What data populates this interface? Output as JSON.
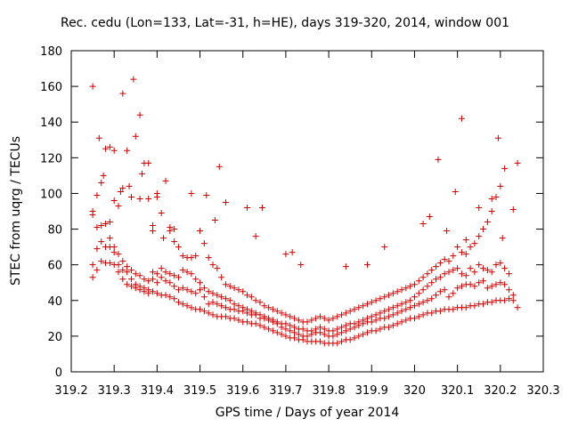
{
  "chart_data": {
    "type": "scatter",
    "title": "Rec. cedu (Lon=133, Lat=-31, h=HE), days 319-320, 2014, window 001",
    "xlabel": "GPS time / Days of year 2014",
    "ylabel": "STEC from uqrg / TECUs",
    "xlim": [
      319.2,
      320.3
    ],
    "ylim": [
      0,
      180
    ],
    "xticks": [
      "319.2",
      "319.3",
      "319.4",
      "319.5",
      "319.6",
      "319.7",
      "319.8",
      "319.9",
      "320",
      "320.1",
      "320.2",
      "320.3"
    ],
    "yticks": [
      "0",
      "20",
      "40",
      "60",
      "80",
      "100",
      "120",
      "140",
      "160",
      "180"
    ],
    "marker": "+",
    "color": "#cc0000",
    "grid": false,
    "legend": "none",
    "series": [
      {
        "x": [
          319.25,
          319.26,
          319.27,
          319.28,
          319.29,
          319.3,
          319.31,
          319.32,
          319.33,
          319.34,
          319.35,
          319.36,
          319.37,
          319.38,
          319.39,
          319.4,
          319.41,
          319.42,
          319.43,
          319.44,
          319.45,
          319.46,
          319.47,
          319.48,
          319.49,
          319.5,
          319.51,
          319.52,
          319.53,
          319.54,
          319.55,
          319.56,
          319.57,
          319.58,
          319.59,
          319.6,
          319.61,
          319.62,
          319.63,
          319.64,
          319.65,
          319.66,
          319.67,
          319.68,
          319.69,
          319.7,
          319.71,
          319.72,
          319.73,
          319.74,
          319.75,
          319.76,
          319.77,
          319.78,
          319.79,
          319.8,
          319.81,
          319.82,
          319.83,
          319.84,
          319.85,
          319.86,
          319.87,
          319.88,
          319.89,
          319.9,
          319.91,
          319.92,
          319.93,
          319.94,
          319.95,
          319.96,
          319.97,
          319.98,
          319.99,
          320.0,
          320.01,
          320.02,
          320.03,
          320.04,
          320.05,
          320.06,
          320.07,
          320.08,
          320.09,
          320.1,
          320.11,
          320.12,
          320.13,
          320.14,
          320.15,
          320.16,
          320.17,
          320.18,
          320.19,
          320.2,
          320.21,
          320.22,
          320.23,
          320.24
        ],
        "y": [
          53,
          57,
          62,
          61,
          61,
          60,
          56,
          52,
          49,
          48,
          47,
          46,
          45,
          44,
          45,
          44,
          43,
          43,
          42,
          41,
          39,
          38,
          37,
          36,
          35,
          35,
          34,
          33,
          32,
          31,
          31,
          31,
          30,
          30,
          29,
          28,
          28,
          27,
          27,
          26,
          25,
          24,
          23,
          22,
          21,
          20,
          19,
          19,
          18,
          18,
          17,
          17,
          17,
          17,
          16,
          16,
          16,
          16,
          17,
          18,
          18,
          19,
          20,
          21,
          22,
          23,
          23,
          24,
          25,
          25,
          26,
          27,
          28,
          29,
          30,
          30,
          31,
          32,
          33,
          33,
          34,
          34,
          35,
          35,
          35,
          36,
          36,
          36,
          37,
          37,
          38,
          38,
          39,
          39,
          40,
          40,
          40,
          41,
          40,
          36
        ]
      },
      {
        "x": [
          319.25,
          319.26,
          319.27,
          319.28,
          319.29,
          319.3,
          319.31,
          319.32,
          319.33,
          319.34,
          319.35,
          319.36,
          319.37,
          319.38,
          319.39,
          319.4,
          319.41,
          319.42,
          319.43,
          319.44,
          319.45,
          319.46,
          319.47,
          319.48,
          319.49,
          319.5,
          319.51,
          319.52,
          319.53,
          319.54,
          319.55,
          319.56,
          319.57,
          319.58,
          319.59,
          319.6,
          319.61,
          319.62,
          319.63,
          319.64,
          319.65,
          319.66,
          319.67,
          319.68,
          319.69,
          319.7,
          319.71,
          319.72,
          319.73,
          319.74,
          319.75,
          319.76,
          319.77,
          319.78,
          319.79,
          319.8,
          319.81,
          319.82,
          319.83,
          319.84,
          319.85,
          319.86,
          319.87,
          319.88,
          319.89,
          319.9,
          319.91,
          319.92,
          319.93,
          319.94,
          319.95,
          319.96,
          319.97,
          319.98,
          319.99,
          320.0,
          320.01,
          320.02,
          320.03,
          320.04,
          320.05,
          320.06,
          320.07,
          320.08,
          320.09,
          320.1,
          320.11,
          320.12,
          320.13,
          320.14,
          320.15,
          320.16,
          320.17,
          320.18,
          320.19,
          320.2,
          320.21,
          320.22,
          320.23
        ],
        "y": [
          60,
          69,
          73,
          70,
          70,
          67,
          60,
          57,
          56,
          52,
          49,
          48,
          47,
          46,
          52,
          50,
          53,
          51,
          50,
          48,
          46,
          47,
          46,
          45,
          44,
          46,
          42,
          38,
          39,
          38,
          37,
          36,
          35,
          35,
          34,
          34,
          33,
          32,
          32,
          30,
          30,
          29,
          28,
          27,
          25,
          24,
          23,
          22,
          21,
          20,
          20,
          21,
          22,
          22,
          21,
          20,
          20,
          21,
          22,
          23,
          24,
          25,
          26,
          27,
          28,
          28,
          29,
          30,
          30,
          31,
          32,
          33,
          34,
          35,
          36,
          37,
          38,
          39,
          40,
          41,
          43,
          45,
          46,
          42,
          44,
          47,
          48,
          49,
          49,
          48,
          50,
          51,
          47,
          48,
          49,
          50,
          49,
          46,
          43
        ]
      },
      {
        "x": [
          319.25,
          319.26,
          319.27,
          319.28,
          319.29,
          319.3,
          319.31,
          319.32,
          319.33,
          319.34,
          319.35,
          319.36,
          319.37,
          319.38,
          319.39,
          319.4,
          319.41,
          319.42,
          319.43,
          319.44,
          319.45,
          319.46,
          319.47,
          319.48,
          319.49,
          319.5,
          319.51,
          319.52,
          319.53,
          319.54,
          319.55,
          319.56,
          319.57,
          319.58,
          319.59,
          319.6,
          319.61,
          319.62,
          319.63,
          319.64,
          319.65,
          319.66,
          319.67,
          319.68,
          319.69,
          319.7,
          319.71,
          319.72,
          319.73,
          319.74,
          319.75,
          319.76,
          319.77,
          319.78,
          319.79,
          319.8,
          319.81,
          319.82,
          319.83,
          319.84,
          319.85,
          319.86,
          319.87,
          319.88,
          319.89,
          319.9,
          319.91,
          319.92,
          319.93,
          319.94,
          319.95,
          319.96,
          319.97,
          319.98,
          319.99,
          320.0,
          320.01,
          320.02,
          320.03,
          320.04,
          320.05,
          320.06,
          320.07,
          320.08,
          320.09,
          320.1,
          320.11,
          320.12,
          320.13,
          320.14,
          320.15,
          320.16,
          320.17,
          320.18,
          320.19,
          320.2,
          320.21,
          320.22
        ],
        "y": [
          88,
          81,
          82,
          83,
          75,
          70,
          66,
          62,
          59,
          57,
          55,
          54,
          52,
          51,
          56,
          55,
          58,
          56,
          55,
          54,
          53,
          57,
          56,
          55,
          52,
          50,
          47,
          45,
          44,
          43,
          42,
          41,
          40,
          38,
          37,
          36,
          35,
          34,
          33,
          32,
          31,
          30,
          29,
          28,
          27,
          27,
          26,
          25,
          24,
          24,
          23,
          23,
          24,
          25,
          24,
          23,
          23,
          24,
          25,
          26,
          27,
          27,
          28,
          29,
          30,
          31,
          32,
          33,
          34,
          35,
          36,
          37,
          38,
          39,
          40,
          42,
          44,
          46,
          48,
          50,
          52,
          53,
          55,
          56,
          57,
          58,
          55,
          54,
          58,
          56,
          60,
          58,
          57,
          56,
          60,
          61,
          58,
          55
        ]
      },
      {
        "x": [
          319.25,
          319.26,
          319.27,
          319.28,
          319.29,
          319.3,
          319.31,
          319.32,
          319.33,
          319.34,
          319.35,
          319.36,
          319.37,
          319.38,
          319.39,
          319.4,
          319.41,
          319.42,
          319.43,
          319.44,
          319.45,
          319.46,
          319.47,
          319.48,
          319.49,
          319.5,
          319.51,
          319.52,
          319.53,
          319.54,
          319.55,
          319.56,
          319.57,
          319.58,
          319.59,
          319.6,
          319.61,
          319.62,
          319.63,
          319.64,
          319.65,
          319.66,
          319.67,
          319.68,
          319.69,
          319.7,
          319.71,
          319.72,
          319.73,
          319.74,
          319.75,
          319.76,
          319.77,
          319.78,
          319.79,
          319.8,
          319.81,
          319.82,
          319.83,
          319.84,
          319.85,
          319.86,
          319.87,
          319.88,
          319.89,
          319.9,
          319.91,
          319.92,
          319.93,
          319.94,
          319.95,
          319.96,
          319.97,
          319.98,
          319.99,
          320.0,
          320.01,
          320.02,
          320.03,
          320.04,
          320.05,
          320.06,
          320.07,
          320.08,
          320.09,
          320.1,
          320.11,
          320.12,
          320.13,
          320.14,
          320.15,
          320.16,
          320.17,
          320.18,
          320.19,
          320.2,
          320.21
        ],
        "y": [
          160,
          99,
          106,
          125,
          84,
          96,
          93,
          103,
          124,
          98,
          132,
          97,
          117,
          97,
          79,
          100,
          89,
          107,
          81,
          73,
          70,
          65,
          64,
          64,
          65,
          79,
          72,
          64,
          60,
          58,
          53,
          49,
          48,
          47,
          46,
          45,
          43,
          42,
          40,
          39,
          37,
          36,
          35,
          34,
          33,
          32,
          31,
          30,
          29,
          28,
          28,
          29,
          30,
          31,
          30,
          29,
          30,
          31,
          32,
          33,
          34,
          35,
          36,
          37,
          38,
          39,
          40,
          41,
          42,
          43,
          44,
          45,
          46,
          47,
          48,
          49,
          51,
          53,
          55,
          57,
          59,
          61,
          63,
          62,
          65,
          70,
          67,
          66,
          70,
          72,
          76,
          80,
          84,
          90,
          98,
          104,
          114
        ]
      },
      {
        "x": [
          319.25,
          319.265,
          319.275,
          319.29,
          319.3,
          319.315,
          319.32,
          319.335,
          319.345,
          319.36,
          319.365,
          319.38,
          319.39,
          319.4,
          319.415,
          319.43,
          319.44,
          319.48,
          319.515,
          319.535,
          319.545,
          319.56,
          319.61,
          319.63,
          319.645,
          319.7,
          319.715,
          319.735,
          319.84,
          319.89,
          319.93,
          320.02,
          320.035,
          320.055,
          320.075,
          320.095,
          320.11,
          320.12,
          320.15,
          320.18,
          320.195,
          320.205,
          320.23,
          320.24
        ],
        "y": [
          90,
          131,
          110,
          126,
          124,
          101,
          156,
          104,
          164,
          144,
          111,
          117,
          82,
          98,
          75,
          79,
          80,
          100,
          99,
          85,
          115,
          95,
          92,
          76,
          92,
          66,
          67,
          60,
          59,
          60,
          70,
          83,
          87,
          119,
          79,
          101,
          142,
          74,
          92,
          97,
          131,
          75,
          91,
          117
        ]
      }
    ]
  }
}
